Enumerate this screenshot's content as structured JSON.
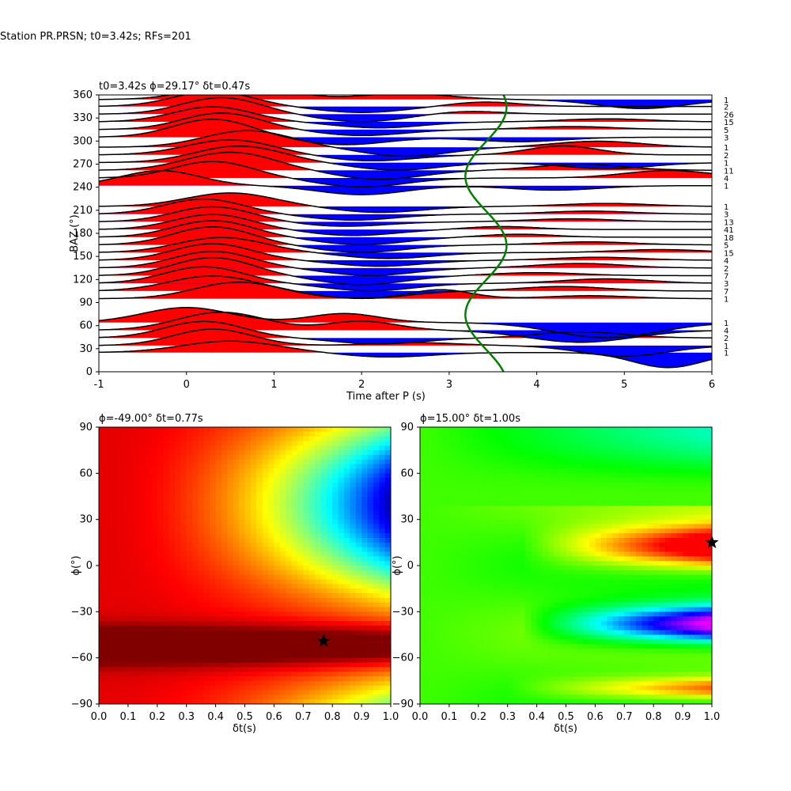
{
  "figure_title": "Station PR.PRSN; t0=3.42s; RFs=201",
  "chart_data": [
    {
      "type": "line",
      "name": "rf-wiggle-section",
      "title": "t0=3.42s ϕ=29.17° δt=0.47s",
      "xlabel": "Time after P (s)",
      "ylabel": "BAZ (°)",
      "xlim": [
        -1,
        6
      ],
      "ylim": [
        0,
        360
      ],
      "xticks": [
        "-1",
        "0",
        "1",
        "2",
        "3",
        "4",
        "5",
        "6"
      ],
      "yticks": [
        "0",
        "30",
        "60",
        "90",
        "120",
        "150",
        "180",
        "210",
        "240",
        "270",
        "300",
        "330",
        "360"
      ],
      "positive_fill": "#ff0000",
      "negative_fill": "#0000ff",
      "trace_color": "#000000",
      "fit_curve_color": "#008000",
      "fit_curve": {
        "center": 3.42,
        "amplitude": 0.47,
        "period_deg": 180,
        "phase_deg": 29.17
      },
      "traces": [
        {
          "baz": 25,
          "count": "1",
          "p1": [
            0.5,
            0.38,
            0.55
          ],
          "p2": [
            2.3,
            -0.15,
            0.5
          ],
          "p3": [
            5.5,
            -0.5,
            0.4
          ]
        },
        {
          "baz": 34,
          "count": "1",
          "p1": [
            0.3,
            0.55,
            0.45
          ],
          "p2": [
            2.6,
            0.1,
            0.5
          ],
          "p3": [
            5.0,
            -0.35,
            0.5
          ]
        },
        {
          "baz": 44,
          "count": "2",
          "p1": [
            0.2,
            0.55,
            0.45
          ],
          "p2": [
            2.2,
            -0.2,
            0.5
          ],
          "p3": [
            4.5,
            0.2,
            0.5
          ]
        },
        {
          "baz": 54,
          "count": "4",
          "p1": [
            0.4,
            0.6,
            0.5
          ],
          "p2": [
            2.0,
            0.3,
            0.4
          ],
          "p3": [
            4.5,
            -0.4,
            0.6
          ]
        },
        {
          "baz": 64,
          "count": "1",
          "p1": [
            0.0,
            0.5,
            0.5
          ],
          "p2": [
            1.8,
            0.3,
            0.4
          ],
          "p3": [
            4.8,
            -0.5,
            0.6
          ]
        },
        {
          "baz": 95,
          "count": "1",
          "p1": [
            0.6,
            0.55,
            0.5
          ],
          "p2": [
            2.9,
            0.3,
            0.35
          ],
          "p3": [
            4.6,
            0.1,
            0.5
          ]
        },
        {
          "baz": 105,
          "count": "7",
          "p1": [
            0.3,
            0.5,
            0.5
          ],
          "p2": [
            2.0,
            -0.25,
            0.5
          ],
          "p3": [
            4.3,
            0.15,
            0.5
          ]
        },
        {
          "baz": 115,
          "count": "3",
          "p1": [
            0.2,
            0.55,
            0.45
          ],
          "p2": [
            2.1,
            -0.25,
            0.5
          ],
          "p3": [
            4.8,
            0.15,
            0.5
          ]
        },
        {
          "baz": 125,
          "count": "7",
          "p1": [
            0.3,
            0.6,
            0.45
          ],
          "p2": [
            2.0,
            -0.3,
            0.5
          ],
          "p3": [
            4.0,
            0.1,
            0.5
          ]
        },
        {
          "baz": 135,
          "count": "2",
          "p1": [
            0.3,
            0.55,
            0.45
          ],
          "p2": [
            2.1,
            -0.25,
            0.5
          ],
          "p3": [
            4.5,
            0.15,
            0.5
          ]
        },
        {
          "baz": 145,
          "count": "4",
          "p1": [
            0.3,
            0.55,
            0.45
          ],
          "p2": [
            2.2,
            -0.2,
            0.5
          ],
          "p3": [
            4.7,
            0.1,
            0.5
          ]
        },
        {
          "baz": 155,
          "count": "15",
          "p1": [
            0.4,
            0.5,
            0.5
          ],
          "p2": [
            2.3,
            -0.2,
            0.5
          ],
          "p3": [
            5.4,
            0.1,
            0.5
          ]
        },
        {
          "baz": 165,
          "count": "5",
          "p1": [
            0.3,
            0.6,
            0.45
          ],
          "p2": [
            2.0,
            -0.25,
            0.5
          ],
          "p3": [
            4.6,
            0.1,
            0.5
          ]
        },
        {
          "baz": 175,
          "count": "18",
          "p1": [
            0.3,
            0.55,
            0.45
          ],
          "p2": [
            2.0,
            -0.25,
            0.5
          ],
          "p3": [
            3.8,
            0.1,
            0.4
          ]
        },
        {
          "baz": 185,
          "count": "41",
          "p1": [
            0.3,
            0.5,
            0.45
          ],
          "p2": [
            1.9,
            -0.2,
            0.5
          ],
          "p3": [
            3.6,
            0.1,
            0.4
          ]
        },
        {
          "baz": 195,
          "count": "13",
          "p1": [
            0.3,
            0.5,
            0.45
          ],
          "p2": [
            1.8,
            -0.15,
            0.5
          ],
          "p3": [
            4.4,
            0.1,
            0.5
          ]
        },
        {
          "baz": 205,
          "count": "3",
          "p1": [
            0.2,
            0.5,
            0.45
          ],
          "p2": [
            1.9,
            -0.2,
            0.5
          ],
          "p3": [
            4.6,
            0.1,
            0.5
          ]
        },
        {
          "baz": 215,
          "count": "1",
          "p1": [
            0.5,
            0.45,
            0.5
          ],
          "p2": [
            2.2,
            -0.2,
            0.5
          ],
          "p3": [
            4.8,
            0.1,
            0.5
          ]
        },
        {
          "baz": 242,
          "count": "1",
          "p1": [
            -0.3,
            0.5,
            0.45
          ],
          "p2": [
            2.0,
            -0.3,
            0.5
          ],
          "p3": [
            4.2,
            -0.15,
            0.5
          ]
        },
        {
          "baz": 252,
          "count": "4",
          "p1": [
            0.3,
            0.55,
            0.45
          ],
          "p2": [
            2.0,
            -0.3,
            0.5
          ],
          "p3": [
            5.5,
            0.25,
            0.5
          ]
        },
        {
          "baz": 262,
          "count": "11",
          "p1": [
            0.5,
            0.6,
            0.5
          ],
          "p2": [
            2.2,
            -0.3,
            0.5
          ],
          "p3": [
            4.5,
            0.2,
            0.5
          ]
        },
        {
          "baz": 272,
          "count": "1",
          "p1": [
            0.6,
            0.55,
            0.5
          ],
          "p2": [
            2.4,
            -0.25,
            0.5
          ],
          "p3": [
            4.8,
            -0.2,
            0.5
          ]
        },
        {
          "baz": 282,
          "count": "2",
          "p1": [
            0.5,
            0.5,
            0.5
          ],
          "p2": [
            2.1,
            -0.2,
            0.5
          ],
          "p3": [
            4.3,
            0.3,
            0.4
          ]
        },
        {
          "baz": 292,
          "count": "1",
          "p1": [
            0.7,
            0.55,
            0.5
          ],
          "p2": [
            2.5,
            -0.3,
            0.5
          ],
          "p3": [
            4.7,
            0.2,
            0.5
          ]
        },
        {
          "baz": 305,
          "count": "3",
          "p1": [
            0.3,
            0.6,
            0.45
          ],
          "p2": [
            1.8,
            -0.25,
            0.5
          ],
          "p3": [
            3.8,
            -0.15,
            0.5
          ]
        },
        {
          "baz": 315,
          "count": "5",
          "p1": [
            0.4,
            0.55,
            0.45
          ],
          "p2": [
            2.0,
            -0.2,
            0.5
          ],
          "p3": [
            4.4,
            0.1,
            0.5
          ]
        },
        {
          "baz": 325,
          "count": "15",
          "p1": [
            0.3,
            0.5,
            0.45
          ],
          "p2": [
            2.2,
            -0.2,
            0.5
          ],
          "p3": [
            4.8,
            0.1,
            0.5
          ]
        },
        {
          "baz": 335,
          "count": "26",
          "p1": [
            0.4,
            0.55,
            0.45
          ],
          "p2": [
            2.0,
            -0.25,
            0.5
          ],
          "p3": [
            3.2,
            0.1,
            0.4
          ]
        },
        {
          "baz": 345,
          "count": "2",
          "p1": [
            0.3,
            0.5,
            0.45
          ],
          "p2": [
            2.0,
            -0.2,
            0.5
          ],
          "p3": [
            3.4,
            0.15,
            0.4
          ]
        },
        {
          "baz": 354,
          "count": "1",
          "p1": [
            0.6,
            0.55,
            0.5
          ],
          "p2": [
            2.5,
            0.2,
            0.5
          ],
          "p3": [
            5.2,
            -0.3,
            0.5
          ]
        }
      ]
    },
    {
      "type": "heatmap",
      "name": "energy-map-left",
      "title": "ϕ=-49.00° δt=0.77s",
      "xlabel": "δt(s)",
      "ylabel": "ϕ(°)",
      "xlim": [
        0.0,
        1.0
      ],
      "ylim": [
        -90,
        90
      ],
      "xticks": [
        "0.0",
        "0.1",
        "0.2",
        "0.3",
        "0.4",
        "0.5",
        "0.6",
        "0.7",
        "0.8",
        "0.9",
        "1.0"
      ],
      "yticks": [
        "−90",
        "−60",
        "−30",
        "0",
        "30",
        "60",
        "90"
      ],
      "colormap": "jet",
      "best": {
        "dt": 0.77,
        "phi": -49.0
      },
      "star_color": "#000000"
    },
    {
      "type": "heatmap",
      "name": "energy-map-right",
      "title": "ϕ=15.00° δt=1.00s",
      "xlabel": "δt(s)",
      "ylabel": "ϕ(°)",
      "xlim": [
        0.0,
        1.0
      ],
      "ylim": [
        -90,
        90
      ],
      "xticks": [
        "0.0",
        "0.1",
        "0.2",
        "0.3",
        "0.4",
        "0.5",
        "0.6",
        "0.7",
        "0.8",
        "0.9",
        "1.0"
      ],
      "yticks": [
        "−90",
        "−60",
        "−30",
        "0",
        "30",
        "60",
        "90"
      ],
      "colormap": "hsv",
      "best": {
        "dt": 1.0,
        "phi": 15.0
      },
      "star_color": "#000000"
    }
  ]
}
